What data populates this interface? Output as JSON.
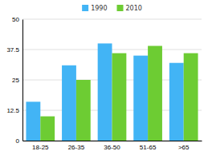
{
  "chart_data": {
    "type": "bar",
    "categories": [
      "18-25",
      "26-35",
      "36-50",
      "51-65",
      ">65"
    ],
    "series": [
      {
        "name": "1990",
        "color": "#42b4f5",
        "values": [
          16,
          31,
          40,
          35,
          32
        ]
      },
      {
        "name": "2010",
        "color": "#6dcc33",
        "values": [
          10,
          25,
          36,
          39,
          36
        ]
      }
    ],
    "ylim": [
      0,
      50
    ],
    "yticks": [
      0,
      12.5,
      25,
      37.5,
      50
    ],
    "grid": true,
    "legend": "top"
  }
}
